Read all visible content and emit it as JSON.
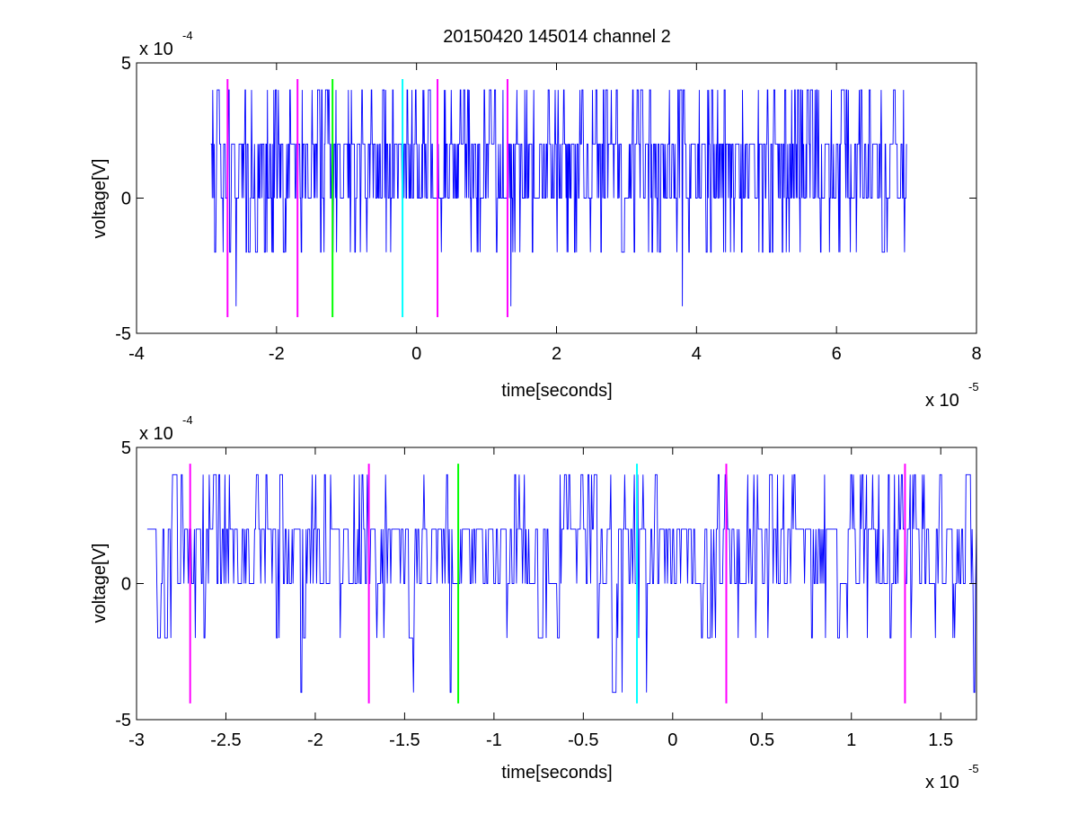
{
  "figure_title": "20150420 145014 channel 2",
  "chart_data": [
    {
      "type": "line",
      "title": "20150420 145014 channel 2",
      "xlabel": "time[seconds]",
      "ylabel": "voltage[V]",
      "x_exponent_label": "x 10",
      "x_exponent": "-5",
      "y_exponent_label": "x 10",
      "y_exponent": "-4",
      "xlim": [
        -4,
        8
      ],
      "ylim": [
        -5,
        5
      ],
      "xticks": [
        -4,
        -2,
        0,
        2,
        4,
        6,
        8
      ],
      "xtick_labels": [
        "-4",
        "-2",
        "0",
        "2",
        "4",
        "6",
        "8"
      ],
      "yticks": [
        -5,
        0,
        5
      ],
      "ytick_labels": [
        "-5",
        "0",
        "5"
      ],
      "grid": false,
      "series": [
        {
          "color": "#0000ff",
          "x_range": [
            -2.94,
            7.0
          ],
          "levels": [
            -2,
            0,
            2,
            4
          ],
          "dominant_levels": [
            0,
            2
          ],
          "minimum": -4,
          "maximum": 4
        }
      ],
      "markers": [
        {
          "x": -2.7,
          "color": "#ff00ff",
          "y_range": [
            -4.4,
            4.4
          ]
        },
        {
          "x": -1.7,
          "color": "#ff00ff",
          "y_range": [
            -4.4,
            4.4
          ]
        },
        {
          "x": -1.2,
          "color": "#00ff00",
          "y_range": [
            -4.4,
            4.4
          ]
        },
        {
          "x": -0.2,
          "color": "#00ffff",
          "y_range": [
            -4.4,
            4.4
          ]
        },
        {
          "x": 0.3,
          "color": "#ff00ff",
          "y_range": [
            -4.4,
            4.4
          ]
        },
        {
          "x": 1.3,
          "color": "#ff00ff",
          "y_range": [
            -4.4,
            4.4
          ]
        }
      ]
    },
    {
      "type": "line",
      "title": "",
      "xlabel": "time[seconds]",
      "ylabel": "voltage[V]",
      "x_exponent_label": "x 10",
      "x_exponent": "-5",
      "y_exponent_label": "x 10",
      "y_exponent": "-4",
      "xlim": [
        -3.0,
        1.7
      ],
      "ylim": [
        -5,
        5
      ],
      "xticks": [
        -3,
        -2.5,
        -2,
        -1.5,
        -1,
        -0.5,
        0,
        0.5,
        1,
        1.5
      ],
      "xtick_labels": [
        "-3",
        "-2.5",
        "-2",
        "-1.5",
        "-1",
        "-0.5",
        "0",
        "0.5",
        "1",
        "1.5"
      ],
      "yticks": [
        -5,
        0,
        5
      ],
      "ytick_labels": [
        "-5",
        "0",
        "5"
      ],
      "grid": false,
      "series": [
        {
          "color": "#0000ff",
          "x_range": [
            -2.94,
            1.7
          ],
          "levels": [
            -2,
            0,
            2,
            4
          ],
          "dominant_levels": [
            0,
            2
          ],
          "minimum": -4,
          "maximum": 4
        }
      ],
      "markers": [
        {
          "x": -2.7,
          "color": "#ff00ff",
          "y_range": [
            -4.4,
            4.4
          ]
        },
        {
          "x": -1.7,
          "color": "#ff00ff",
          "y_range": [
            -4.4,
            4.4
          ]
        },
        {
          "x": -1.2,
          "color": "#00ff00",
          "y_range": [
            -4.4,
            4.4
          ]
        },
        {
          "x": -0.2,
          "color": "#00ffff",
          "y_range": [
            -4.4,
            4.4
          ]
        },
        {
          "x": 0.3,
          "color": "#ff00ff",
          "y_range": [
            -4.4,
            4.4
          ]
        },
        {
          "x": 1.3,
          "color": "#ff00ff",
          "y_range": [
            -4.4,
            4.4
          ]
        }
      ]
    }
  ]
}
